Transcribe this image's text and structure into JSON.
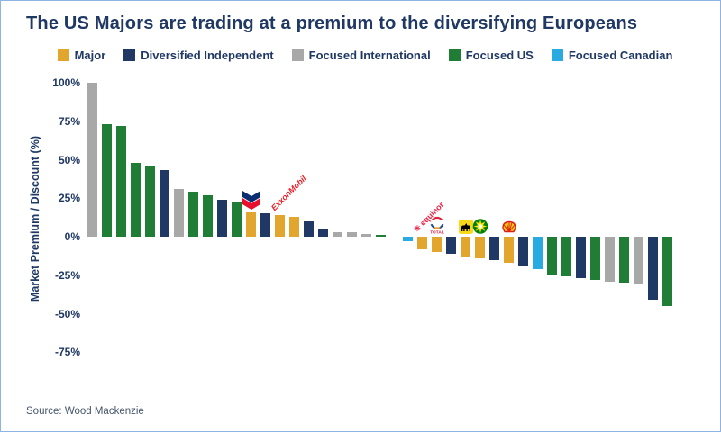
{
  "source": {
    "text": "Source: Wood Mackenzie"
  },
  "chart_data": {
    "type": "bar",
    "title": "The US Majors are trading at a premium to the diversifying Europeans",
    "ylabel": "Market Premium / Discount (%)",
    "ylim": [
      -75,
      100
    ],
    "grid": false,
    "legend_position": "top",
    "yticks": [
      100,
      75,
      50,
      25,
      0,
      -25,
      -50,
      -75
    ],
    "ytick_labels": [
      "100%",
      "75%",
      "50%",
      "25%",
      "0%",
      "-25%",
      "-50%",
      "-75%"
    ],
    "legend": [
      {
        "key": "major",
        "label": "Major",
        "color": "#E2A52E"
      },
      {
        "key": "independent",
        "label": "Diversified Independent",
        "color": "#1F3864"
      },
      {
        "key": "international",
        "label": "Focused International",
        "color": "#A8A8A8"
      },
      {
        "key": "us",
        "label": "Focused US",
        "color": "#1F7D35"
      },
      {
        "key": "canadian",
        "label": "Focused Canadian",
        "color": "#29ABE2"
      }
    ],
    "bars": [
      {
        "value": 100,
        "category": "international"
      },
      {
        "value": 73,
        "category": "us"
      },
      {
        "value": 72,
        "category": "us"
      },
      {
        "value": 48,
        "category": "us"
      },
      {
        "value": 46,
        "category": "us"
      },
      {
        "value": 43,
        "category": "independent"
      },
      {
        "value": 31,
        "category": "international"
      },
      {
        "value": 29,
        "category": "us"
      },
      {
        "value": 27,
        "category": "us"
      },
      {
        "value": 24,
        "category": "independent"
      },
      {
        "value": 23,
        "category": "us"
      },
      {
        "value": 16,
        "category": "major",
        "logo": "chevron"
      },
      {
        "value": 15,
        "category": "independent"
      },
      {
        "value": 14,
        "category": "major",
        "logo": "exxonmobil"
      },
      {
        "value": 13,
        "category": "major"
      },
      {
        "value": 10,
        "category": "independent"
      },
      {
        "value": 5,
        "category": "independent"
      },
      {
        "value": 3,
        "category": "international"
      },
      {
        "value": 3,
        "category": "international"
      },
      {
        "value": 2,
        "category": "international"
      },
      {
        "value": 1,
        "category": "us"
      },
      {
        "value": -3,
        "category": "canadian",
        "gap_before": true
      },
      {
        "value": -8,
        "category": "major",
        "logo": "equinor"
      },
      {
        "value": -10,
        "category": "major",
        "logo": "total"
      },
      {
        "value": -11,
        "category": "independent"
      },
      {
        "value": -13,
        "category": "major",
        "logo": "eni"
      },
      {
        "value": -14,
        "category": "major",
        "logo": "bp"
      },
      {
        "value": -15,
        "category": "independent"
      },
      {
        "value": -17,
        "category": "major",
        "logo": "shell"
      },
      {
        "value": -19,
        "category": "independent"
      },
      {
        "value": -21,
        "category": "canadian"
      },
      {
        "value": -25,
        "category": "us"
      },
      {
        "value": -26,
        "category": "us"
      },
      {
        "value": -27,
        "category": "independent"
      },
      {
        "value": -28,
        "category": "us"
      },
      {
        "value": -29,
        "category": "international"
      },
      {
        "value": -30,
        "category": "us"
      },
      {
        "value": -31,
        "category": "international"
      },
      {
        "value": -41,
        "category": "independent"
      },
      {
        "value": -45,
        "category": "us"
      }
    ],
    "logo_annotations": [
      "chevron",
      "exxonmobil",
      "equinor",
      "total",
      "eni",
      "bp",
      "shell"
    ]
  }
}
